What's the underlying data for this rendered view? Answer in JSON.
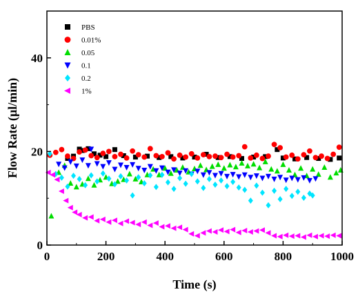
{
  "chart_data": {
    "type": "scatter",
    "xlabel": "Time (s)",
    "ylabel": "Flow Rate (μl/min)",
    "xlim": [
      0,
      1000
    ],
    "ylim": [
      0,
      50
    ],
    "xticks": [
      "0",
      "200",
      "400",
      "600",
      "800",
      "1000"
    ],
    "yticks": [
      "0",
      "20",
      "40"
    ],
    "grid": false,
    "legend_position": "top-left",
    "series": [
      {
        "name": "PBS",
        "marker": "square",
        "color": "#000000",
        "points": [
          [
            70,
            18.5
          ],
          [
            90,
            19
          ],
          [
            110,
            20.5
          ],
          [
            120,
            20.2
          ],
          [
            140,
            20.6
          ],
          [
            160,
            19.5
          ],
          [
            180,
            19.2
          ],
          [
            200,
            18.9
          ],
          [
            230,
            20.4
          ],
          [
            260,
            19.1
          ],
          [
            300,
            18.8
          ],
          [
            340,
            19.0
          ],
          [
            380,
            18.7
          ],
          [
            420,
            18.9
          ],
          [
            460,
            18.6
          ],
          [
            500,
            18.8
          ],
          [
            540,
            19.4
          ],
          [
            580,
            18.7
          ],
          [
            620,
            18.9
          ],
          [
            660,
            18.5
          ],
          [
            700,
            18.8
          ],
          [
            740,
            18.9
          ],
          [
            780,
            20.4
          ],
          [
            800,
            18.6
          ],
          [
            840,
            18.4
          ],
          [
            880,
            18.7
          ],
          [
            920,
            18.5
          ],
          [
            960,
            18.3
          ],
          [
            990,
            18.6
          ]
        ]
      },
      {
        "name": "0.01%",
        "marker": "circle",
        "color": "#ff0000",
        "points": [
          [
            10,
            19.2
          ],
          [
            30,
            19.8
          ],
          [
            50,
            20.4
          ],
          [
            70,
            19.0
          ],
          [
            90,
            18.5
          ],
          [
            110,
            19.9
          ],
          [
            130,
            20.3
          ],
          [
            150,
            19.1
          ],
          [
            170,
            18.7
          ],
          [
            190,
            19.6
          ],
          [
            210,
            20.0
          ],
          [
            230,
            18.9
          ],
          [
            250,
            19.4
          ],
          [
            270,
            18.6
          ],
          [
            290,
            20.1
          ],
          [
            310,
            19.3
          ],
          [
            330,
            18.8
          ],
          [
            350,
            20.6
          ],
          [
            370,
            19.1
          ],
          [
            390,
            18.9
          ],
          [
            410,
            19.7
          ],
          [
            430,
            18.4
          ],
          [
            450,
            19.2
          ],
          [
            470,
            18.8
          ],
          [
            490,
            19.5
          ],
          [
            510,
            18.6
          ],
          [
            530,
            19.3
          ],
          [
            550,
            18.9
          ],
          [
            570,
            19.0
          ],
          [
            590,
            18.7
          ],
          [
            610,
            19.4
          ],
          [
            630,
            18.8
          ],
          [
            650,
            19.1
          ],
          [
            670,
            21.0
          ],
          [
            690,
            18.6
          ],
          [
            710,
            19.2
          ],
          [
            730,
            18.5
          ],
          [
            750,
            19.0
          ],
          [
            770,
            21.5
          ],
          [
            790,
            20.8
          ],
          [
            810,
            18.8
          ],
          [
            830,
            19.2
          ],
          [
            850,
            18.4
          ],
          [
            870,
            19.3
          ],
          [
            890,
            20.1
          ],
          [
            910,
            18.7
          ],
          [
            930,
            19.0
          ],
          [
            950,
            18.5
          ],
          [
            970,
            19.4
          ],
          [
            990,
            20.9
          ]
        ]
      },
      {
        "name": "0.05",
        "marker": "triangle-up",
        "color": "#00dd00",
        "points": [
          [
            15,
            6.2
          ],
          [
            40,
            15.5
          ],
          [
            60,
            17.0
          ],
          [
            80,
            13.2
          ],
          [
            100,
            12.4
          ],
          [
            120,
            13.0
          ],
          [
            140,
            14.2
          ],
          [
            160,
            12.8
          ],
          [
            180,
            13.9
          ],
          [
            200,
            14.5
          ],
          [
            220,
            13.1
          ],
          [
            240,
            13.6
          ],
          [
            260,
            14.0
          ],
          [
            280,
            15.2
          ],
          [
            300,
            14.1
          ],
          [
            320,
            13.5
          ],
          [
            340,
            15.0
          ],
          [
            360,
            16.2
          ],
          [
            380,
            15.0
          ],
          [
            400,
            16.4
          ],
          [
            420,
            15.3
          ],
          [
            440,
            16.0
          ],
          [
            460,
            16.6
          ],
          [
            480,
            15.6
          ],
          [
            500,
            16.3
          ],
          [
            520,
            17.0
          ],
          [
            540,
            16.1
          ],
          [
            560,
            16.8
          ],
          [
            580,
            17.2
          ],
          [
            600,
            16.4
          ],
          [
            620,
            17.1
          ],
          [
            640,
            16.7
          ],
          [
            660,
            17.5
          ],
          [
            680,
            16.9
          ],
          [
            700,
            17.3
          ],
          [
            720,
            16.5
          ],
          [
            740,
            17.8
          ],
          [
            760,
            16.2
          ],
          [
            780,
            15.8
          ],
          [
            800,
            17.2
          ],
          [
            820,
            16.0
          ],
          [
            840,
            15.0
          ],
          [
            860,
            16.4
          ],
          [
            880,
            14.8
          ],
          [
            900,
            16.2
          ],
          [
            920,
            15.1
          ],
          [
            940,
            16.6
          ],
          [
            960,
            14.5
          ],
          [
            980,
            15.4
          ],
          [
            995,
            16.0
          ]
        ]
      },
      {
        "name": "0.1",
        "marker": "triangle-down",
        "color": "#0000ff",
        "points": [
          [
            40,
            17.3
          ],
          [
            60,
            16.5
          ],
          [
            80,
            17.8
          ],
          [
            100,
            16.9
          ],
          [
            120,
            18.2
          ],
          [
            140,
            17.0
          ],
          [
            150,
            20.5
          ],
          [
            170,
            17.4
          ],
          [
            190,
            16.8
          ],
          [
            210,
            17.6
          ],
          [
            230,
            16.2
          ],
          [
            250,
            17.1
          ],
          [
            270,
            16.6
          ],
          [
            290,
            17.2
          ],
          [
            310,
            16.4
          ],
          [
            330,
            16.0
          ],
          [
            350,
            16.8
          ],
          [
            370,
            15.9
          ],
          [
            390,
            16.5
          ],
          [
            410,
            15.6
          ],
          [
            430,
            16.1
          ],
          [
            450,
            15.4
          ],
          [
            470,
            15.9
          ],
          [
            490,
            15.2
          ],
          [
            510,
            15.8
          ],
          [
            530,
            15.0
          ],
          [
            550,
            15.5
          ],
          [
            570,
            14.9
          ],
          [
            590,
            15.3
          ],
          [
            610,
            14.7
          ],
          [
            630,
            15.1
          ],
          [
            650,
            14.6
          ],
          [
            670,
            15.0
          ],
          [
            690,
            14.5
          ],
          [
            710,
            14.8
          ],
          [
            730,
            14.3
          ],
          [
            750,
            14.7
          ],
          [
            770,
            14.1
          ],
          [
            790,
            14.5
          ],
          [
            810,
            13.9
          ],
          [
            830,
            14.3
          ],
          [
            850,
            14.0
          ],
          [
            870,
            14.4
          ],
          [
            890,
            13.8
          ],
          [
            910,
            14.2
          ]
        ]
      },
      {
        "name": "0.2",
        "marker": "diamond",
        "color": "#00e5ff",
        "points": [
          [
            10,
            19.5
          ],
          [
            30,
            15.2
          ],
          [
            50,
            14.4
          ],
          [
            70,
            12.5
          ],
          [
            90,
            14.8
          ],
          [
            110,
            14.1
          ],
          [
            130,
            12.8
          ],
          [
            150,
            14.9
          ],
          [
            170,
            13.6
          ],
          [
            190,
            15.3
          ],
          [
            210,
            14.2
          ],
          [
            230,
            13.0
          ],
          [
            250,
            14.7
          ],
          [
            270,
            13.8
          ],
          [
            290,
            10.6
          ],
          [
            310,
            14.5
          ],
          [
            330,
            13.2
          ],
          [
            350,
            14.9
          ],
          [
            370,
            12.4
          ],
          [
            390,
            15.0
          ],
          [
            410,
            13.4
          ],
          [
            430,
            12.0
          ],
          [
            450,
            14.3
          ],
          [
            470,
            13.1
          ],
          [
            490,
            15.2
          ],
          [
            510,
            13.6
          ],
          [
            530,
            12.2
          ],
          [
            550,
            14.1
          ],
          [
            570,
            12.9
          ],
          [
            590,
            13.8
          ],
          [
            610,
            12.6
          ],
          [
            630,
            13.5
          ],
          [
            650,
            12.3
          ],
          [
            670,
            11.8
          ],
          [
            690,
            9.5
          ],
          [
            710,
            12.7
          ],
          [
            730,
            11.2
          ],
          [
            750,
            8.5
          ],
          [
            770,
            11.6
          ],
          [
            790,
            9.8
          ],
          [
            810,
            12.0
          ],
          [
            830,
            10.5
          ],
          [
            850,
            11.4
          ],
          [
            870,
            10.1
          ],
          [
            890,
            11.0
          ],
          [
            900,
            10.6
          ]
        ]
      },
      {
        "name": "1%",
        "marker": "triangle-left",
        "color": "#ff00ff",
        "points": [
          [
            5,
            15.5
          ],
          [
            20,
            15.0
          ],
          [
            35,
            14.0
          ],
          [
            50,
            11.5
          ],
          [
            65,
            9.5
          ],
          [
            80,
            8.0
          ],
          [
            95,
            7.0
          ],
          [
            110,
            6.5
          ],
          [
            130,
            5.8
          ],
          [
            150,
            6.0
          ],
          [
            170,
            5.2
          ],
          [
            190,
            5.5
          ],
          [
            210,
            4.9
          ],
          [
            230,
            5.3
          ],
          [
            250,
            4.6
          ],
          [
            270,
            5.1
          ],
          [
            290,
            4.8
          ],
          [
            310,
            4.4
          ],
          [
            330,
            4.9
          ],
          [
            350,
            4.2
          ],
          [
            370,
            4.7
          ],
          [
            390,
            3.9
          ],
          [
            410,
            4.1
          ],
          [
            430,
            3.6
          ],
          [
            450,
            3.8
          ],
          [
            470,
            3.3
          ],
          [
            490,
            2.4
          ],
          [
            510,
            2.0
          ],
          [
            530,
            2.6
          ],
          [
            550,
            3.0
          ],
          [
            570,
            2.8
          ],
          [
            590,
            3.2
          ],
          [
            610,
            2.9
          ],
          [
            630,
            3.3
          ],
          [
            650,
            2.7
          ],
          [
            670,
            3.1
          ],
          [
            690,
            2.8
          ],
          [
            710,
            3.0
          ],
          [
            730,
            3.2
          ],
          [
            750,
            2.6
          ],
          [
            770,
            2.0
          ],
          [
            790,
            1.8
          ],
          [
            810,
            2.1
          ],
          [
            830,
            1.9
          ],
          [
            850,
            2.0
          ],
          [
            870,
            1.7
          ],
          [
            890,
            2.1
          ],
          [
            910,
            1.8
          ],
          [
            930,
            2.0
          ],
          [
            950,
            1.9
          ],
          [
            970,
            2.1
          ],
          [
            990,
            2.0
          ]
        ]
      }
    ]
  }
}
